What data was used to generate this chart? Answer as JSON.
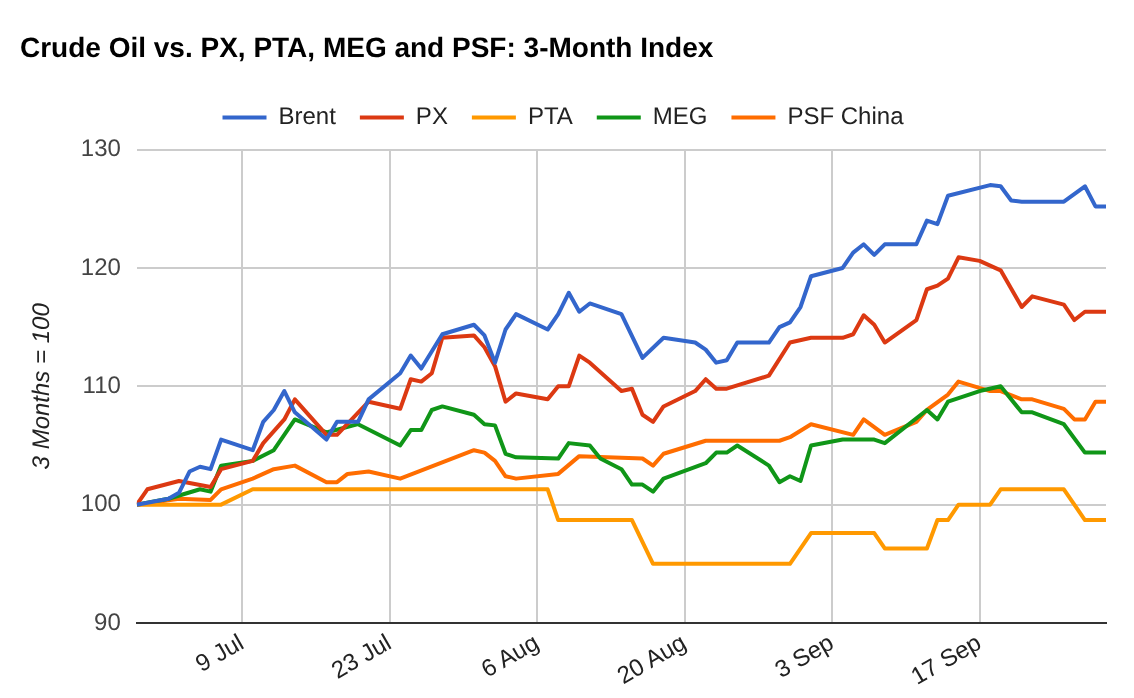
{
  "chart_data": {
    "type": "line",
    "title": "Crude Oil vs. PX, PTA, MEG and PSF: 3-Month Index",
    "ylabel": "3 Months = 100",
    "xlim": [
      "--06-29",
      "--09-29"
    ],
    "xticks": [
      {
        "value": "--07-09",
        "label": "9 Jul"
      },
      {
        "value": "--07-23",
        "label": "23 Jul"
      },
      {
        "value": "--08-06",
        "label": "6 Aug"
      },
      {
        "value": "--08-20",
        "label": "20 Aug"
      },
      {
        "value": "--09-03",
        "label": "3 Sep"
      },
      {
        "value": "--09-17",
        "label": "17 Sep"
      }
    ],
    "ylim": [
      90,
      130
    ],
    "yticks": [
      90,
      100,
      110,
      120,
      130
    ],
    "grid": true,
    "legend": "top",
    "marker": "none",
    "line_style": "solid",
    "series": [
      {
        "name": "Brent",
        "color": "#3366cc",
        "x": [
          "--06-29",
          "--07-02",
          "--07-03",
          "--07-04",
          "--07-05",
          "--07-06",
          "--07-07",
          "--07-10",
          "--07-11",
          "--07-12",
          "--07-13",
          "--07-14",
          "--07-17",
          "--07-18",
          "--07-20",
          "--07-21",
          "--07-24",
          "--07-25",
          "--07-26",
          "--07-28",
          "--07-31",
          "--08-01",
          "--08-02",
          "--08-03",
          "--08-04",
          "--08-07",
          "--08-08",
          "--08-09",
          "--08-10",
          "--08-11",
          "--08-14",
          "--08-16",
          "--08-18",
          "--08-21",
          "--08-22",
          "--08-23",
          "--08-24",
          "--08-25",
          "--08-28",
          "--08-29",
          "--08-30",
          "--08-31",
          "--09-01",
          "--09-04",
          "--09-05",
          "--09-06",
          "--09-07",
          "--09-08",
          "--09-11",
          "--09-12",
          "--09-13",
          "--09-14",
          "--09-18",
          "--09-19",
          "--09-20",
          "--09-21",
          "--09-25",
          "--09-27",
          "--09-28",
          "--09-29"
        ],
        "values": [
          100,
          100.5,
          101,
          102.8,
          103.2,
          103,
          105.5,
          104.6,
          107,
          108,
          109.6,
          107.8,
          105.5,
          107,
          107,
          108.9,
          111.1,
          112.6,
          111.5,
          114.4,
          115.2,
          114.3,
          112,
          114.8,
          116.1,
          114.8,
          116.1,
          117.9,
          116.3,
          117,
          116.1,
          112.4,
          114.1,
          113.7,
          113.1,
          112,
          112.2,
          113.7,
          113.7,
          115,
          115.4,
          116.7,
          119.3,
          120,
          121.3,
          122,
          121.1,
          122,
          122,
          124,
          123.7,
          126.1,
          127,
          126.9,
          125.7,
          125.6,
          125.6,
          126.9,
          125.2,
          125.2
        ]
      },
      {
        "name": "PX",
        "color": "#dc3912",
        "x": [
          "--06-29",
          "--06-30",
          "--07-03",
          "--07-06",
          "--07-07",
          "--07-10",
          "--07-11",
          "--07-13",
          "--07-14",
          "--07-17",
          "--07-18",
          "--07-21",
          "--07-24",
          "--07-25",
          "--07-26",
          "--07-27",
          "--07-28",
          "--07-31",
          "--08-01",
          "--08-02",
          "--08-03",
          "--08-04",
          "--08-07",
          "--08-08",
          "--08-09",
          "--08-10",
          "--08-11",
          "--08-14",
          "--08-15",
          "--08-16",
          "--08-17",
          "--08-18",
          "--08-21",
          "--08-22",
          "--08-23",
          "--08-24",
          "--08-28",
          "--08-30",
          "--09-01",
          "--09-04",
          "--09-05",
          "--09-06",
          "--09-07",
          "--09-08",
          "--09-11",
          "--09-12",
          "--09-13",
          "--09-14",
          "--09-15",
          "--09-17",
          "--09-19",
          "--09-21",
          "--09-22",
          "--09-25",
          "--09-26",
          "--09-27",
          "--09-29"
        ],
        "values": [
          100,
          101.3,
          102,
          101.5,
          103,
          103.7,
          105.2,
          107.2,
          108.9,
          105.9,
          105.9,
          108.7,
          108.1,
          110.6,
          110.4,
          111.1,
          114.1,
          114.3,
          113.3,
          111.7,
          108.7,
          109.4,
          108.9,
          110,
          110,
          112.6,
          112,
          109.6,
          109.8,
          107.6,
          107,
          108.3,
          109.6,
          110.6,
          109.8,
          109.8,
          110.9,
          113.7,
          114.1,
          114.1,
          114.4,
          116,
          115.2,
          113.7,
          115.6,
          118.2,
          118.5,
          119.1,
          120.9,
          120.6,
          119.8,
          116.7,
          117.6,
          116.9,
          115.6,
          116.3,
          116.3
        ]
      },
      {
        "name": "PTA",
        "color": "#ff9900",
        "x": [
          "--06-29",
          "--07-07",
          "--07-10",
          "--08-07",
          "--08-08",
          "--08-15",
          "--08-17",
          "--08-30",
          "--09-01",
          "--09-07",
          "--09-08",
          "--09-12",
          "--09-13",
          "--09-14",
          "--09-15",
          "--09-18",
          "--09-19",
          "--09-25",
          "--09-27",
          "--09-29"
        ],
        "values": [
          100,
          100,
          101.3,
          101.3,
          98.7,
          98.7,
          95,
          95,
          97.6,
          97.6,
          96.3,
          96.3,
          98.7,
          98.7,
          100,
          100,
          101.3,
          101.3,
          98.7,
          98.7
        ]
      },
      {
        "name": "MEG",
        "color": "#109618",
        "x": [
          "--06-29",
          "--07-02",
          "--07-05",
          "--07-06",
          "--07-07",
          "--07-10",
          "--07-12",
          "--07-14",
          "--07-17",
          "--07-20",
          "--07-24",
          "--07-25",
          "--07-26",
          "--07-27",
          "--07-28",
          "--07-31",
          "--08-01",
          "--08-02",
          "--08-03",
          "--08-04",
          "--08-08",
          "--08-09",
          "--08-11",
          "--08-12",
          "--08-14",
          "--08-15",
          "--08-16",
          "--08-17",
          "--08-18",
          "--08-22",
          "--08-23",
          "--08-24",
          "--08-25",
          "--08-28",
          "--08-29",
          "--08-30",
          "--08-31",
          "--09-01",
          "--09-04",
          "--09-07",
          "--09-08",
          "--09-12",
          "--09-13",
          "--09-14",
          "--09-17",
          "--09-19",
          "--09-21",
          "--09-22",
          "--09-25",
          "--09-27",
          "--09-29"
        ],
        "values": [
          100,
          100.5,
          101.3,
          101.1,
          103.3,
          103.7,
          104.6,
          107.2,
          106.1,
          106.8,
          105,
          106.3,
          106.3,
          108,
          108.3,
          107.6,
          106.8,
          106.7,
          104.3,
          104,
          103.9,
          105.2,
          105,
          103.9,
          103,
          101.7,
          101.7,
          101.1,
          102.2,
          103.5,
          104.4,
          104.4,
          105,
          103.3,
          101.9,
          102.4,
          102,
          105,
          105.5,
          105.5,
          105.2,
          108,
          107.2,
          108.7,
          109.6,
          110,
          107.8,
          107.8,
          106.8,
          104.4,
          104.4
        ]
      },
      {
        "name": "PSF China",
        "color": "#ff6d00",
        "x": [
          "--06-29",
          "--07-03",
          "--07-06",
          "--07-07",
          "--07-10",
          "--07-12",
          "--07-14",
          "--07-17",
          "--07-18",
          "--07-19",
          "--07-21",
          "--07-24",
          "--07-31",
          "--08-01",
          "--08-02",
          "--08-03",
          "--08-04",
          "--08-08",
          "--08-10",
          "--08-16",
          "--08-17",
          "--08-18",
          "--08-22",
          "--08-29",
          "--08-30",
          "--09-01",
          "--09-05",
          "--09-06",
          "--09-08",
          "--09-11",
          "--09-12",
          "--09-14",
          "--09-15",
          "--09-18",
          "--09-19",
          "--09-21",
          "--09-22",
          "--09-25",
          "--09-26",
          "--09-27",
          "--09-28",
          "--09-29"
        ],
        "values": [
          100,
          100.5,
          100.4,
          101.3,
          102.2,
          103,
          103.3,
          101.9,
          101.9,
          102.6,
          102.8,
          102.2,
          104.6,
          104.4,
          103.7,
          102.4,
          102.2,
          102.6,
          104.1,
          103.9,
          103.3,
          104.3,
          105.4,
          105.4,
          105.7,
          106.8,
          105.9,
          107.2,
          105.9,
          107,
          108,
          109.3,
          110.4,
          109.6,
          109.6,
          108.9,
          108.9,
          108.1,
          107.2,
          107.2,
          108.7,
          108.7
        ]
      }
    ]
  }
}
